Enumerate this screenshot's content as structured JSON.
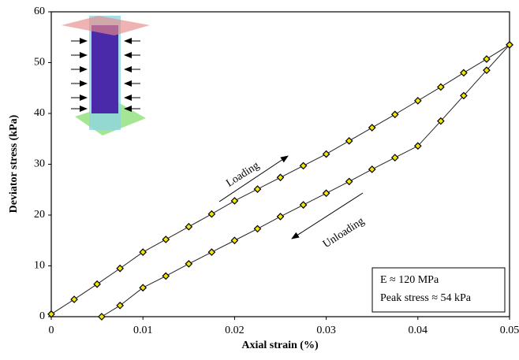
{
  "chart_data": {
    "type": "scatter",
    "xlabel": "Axial strain (%)",
    "ylabel": "Deviator stress (kPa)",
    "xlim": [
      0,
      0.05
    ],
    "xticks": [
      0,
      0.01,
      0.02,
      0.03,
      0.04,
      0.05
    ],
    "ylim": [
      0,
      60
    ],
    "yticks": [
      0,
      10,
      20,
      30,
      40,
      50,
      60
    ],
    "grid": false,
    "series": [
      {
        "color": "#f2e600",
        "x": [
          0,
          0.0025,
          0.005,
          0.0075,
          0.01,
          0.0125,
          0.015,
          0.0175,
          0.02,
          0.0225,
          0.025,
          0.0275,
          0.03,
          0.0325,
          0.035,
          0.0375,
          0.04,
          0.0425,
          0.045,
          0.0475,
          0.05
        ],
        "values": [
          0.5,
          3.4,
          6.4,
          9.5,
          12.7,
          15.2,
          17.7,
          20.2,
          22.8,
          25.1,
          27.4,
          29.7,
          32,
          34.6,
          37.2,
          39.8,
          42.5,
          45.2,
          48,
          50.7,
          53.5
        ]
      },
      {
        "color": "#f2e600",
        "x": [
          0.05,
          0.0475,
          0.045,
          0.0425,
          0.04,
          0.0375,
          0.035,
          0.0325,
          0.03,
          0.0275,
          0.025,
          0.0225,
          0.02,
          0.0175,
          0.015,
          0.0125,
          0.01,
          0.0075,
          0.0055
        ],
        "values": [
          53.5,
          48.5,
          43.5,
          38.5,
          33.6,
          31.3,
          29,
          26.6,
          24.3,
          22,
          19.7,
          17.3,
          15,
          12.7,
          10.4,
          8,
          5.7,
          2.2,
          0
        ]
      }
    ],
    "annotations": [
      "Loading",
      "Unloading"
    ],
    "textbox": [
      "E ≈ 120 MPa",
      "Peak stress ≈ 54 kPa"
    ]
  }
}
